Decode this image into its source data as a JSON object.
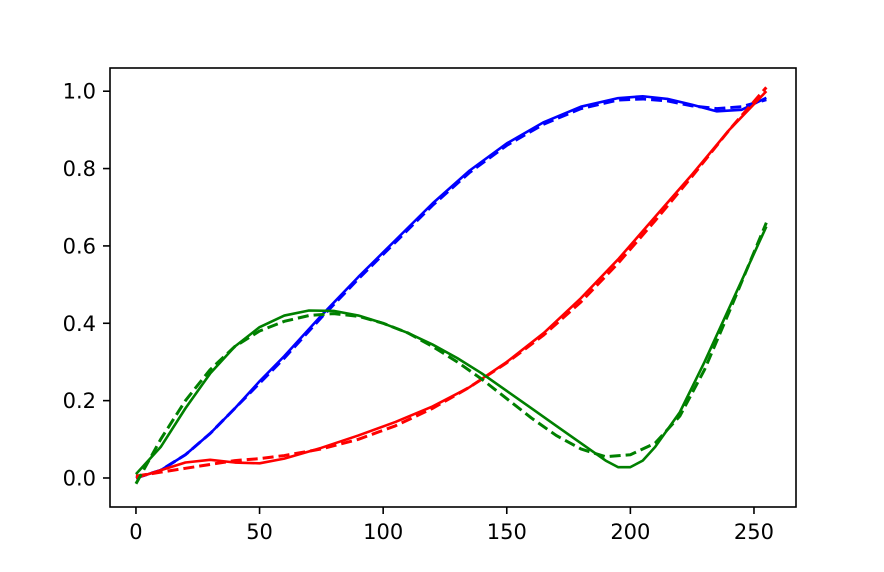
{
  "chart_data": {
    "type": "line",
    "title": "",
    "xlabel": "",
    "ylabel": "",
    "xlim": [
      -10.5,
      267
    ],
    "ylim": [
      -0.075,
      1.06
    ],
    "grid": false,
    "legend": "none",
    "x_ticks": [
      0,
      50,
      100,
      150,
      200,
      250
    ],
    "y_ticks": [
      0.0,
      0.2,
      0.4,
      0.6,
      0.8,
      1.0
    ],
    "x_tick_labels": [
      "0",
      "50",
      "100",
      "150",
      "200",
      "250"
    ],
    "y_tick_labels": [
      "0.0",
      "0.2",
      "0.4",
      "0.6",
      "0.8",
      "1.0"
    ],
    "series": [
      {
        "color": "#0000ff",
        "style": "solid",
        "x": [
          0,
          10,
          20,
          30,
          40,
          50,
          60,
          75,
          90,
          105,
          120,
          135,
          150,
          165,
          180,
          195,
          205,
          215,
          225,
          235,
          245,
          255
        ],
        "y": [
          0.0,
          0.02,
          0.06,
          0.115,
          0.18,
          0.25,
          0.315,
          0.42,
          0.52,
          0.615,
          0.71,
          0.795,
          0.865,
          0.92,
          0.96,
          0.982,
          0.987,
          0.98,
          0.965,
          0.948,
          0.952,
          0.983
        ]
      },
      {
        "color": "#0000ff",
        "style": "dashed",
        "x": [
          0,
          10,
          20,
          30,
          40,
          50,
          60,
          75,
          90,
          105,
          120,
          135,
          150,
          165,
          180,
          195,
          205,
          215,
          225,
          235,
          245,
          255
        ],
        "y": [
          0.0,
          0.02,
          0.06,
          0.115,
          0.18,
          0.245,
          0.31,
          0.415,
          0.515,
          0.61,
          0.705,
          0.79,
          0.86,
          0.915,
          0.955,
          0.977,
          0.98,
          0.975,
          0.962,
          0.955,
          0.96,
          0.978
        ]
      },
      {
        "color": "#ff0000",
        "style": "solid",
        "x": [
          0,
          10,
          20,
          30,
          40,
          50,
          60,
          75,
          90,
          105,
          120,
          135,
          150,
          165,
          180,
          195,
          210,
          225,
          240,
          255
        ],
        "y": [
          0.0,
          0.02,
          0.04,
          0.047,
          0.04,
          0.038,
          0.05,
          0.078,
          0.11,
          0.145,
          0.185,
          0.235,
          0.3,
          0.375,
          0.465,
          0.565,
          0.675,
          0.785,
          0.9,
          1.0
        ]
      },
      {
        "color": "#ff0000",
        "style": "dashed",
        "x": [
          0,
          10,
          20,
          30,
          40,
          50,
          60,
          75,
          90,
          105,
          120,
          135,
          150,
          165,
          180,
          195,
          210,
          225,
          240,
          255
        ],
        "y": [
          0.005,
          0.015,
          0.025,
          0.035,
          0.045,
          0.05,
          0.058,
          0.075,
          0.1,
          0.135,
          0.18,
          0.235,
          0.298,
          0.37,
          0.455,
          0.555,
          0.665,
          0.78,
          0.9,
          1.01
        ]
      },
      {
        "color": "#008000",
        "style": "solid",
        "x": [
          0,
          10,
          20,
          30,
          40,
          50,
          60,
          70,
          80,
          90,
          100,
          110,
          120,
          130,
          140,
          150,
          160,
          170,
          180,
          190,
          195,
          200,
          205,
          210,
          220,
          230,
          240,
          255
        ],
        "y": [
          0.01,
          0.08,
          0.18,
          0.27,
          0.34,
          0.39,
          0.42,
          0.433,
          0.432,
          0.42,
          0.4,
          0.375,
          0.345,
          0.31,
          0.27,
          0.225,
          0.18,
          0.135,
          0.09,
          0.045,
          0.028,
          0.028,
          0.045,
          0.08,
          0.17,
          0.3,
          0.44,
          0.65
        ]
      },
      {
        "color": "#008000",
        "style": "dashed",
        "x": [
          0,
          10,
          20,
          30,
          40,
          50,
          60,
          70,
          80,
          90,
          100,
          110,
          120,
          130,
          140,
          150,
          160,
          170,
          180,
          190,
          200,
          210,
          220,
          230,
          240,
          255
        ],
        "y": [
          -0.015,
          0.1,
          0.2,
          0.28,
          0.34,
          0.38,
          0.405,
          0.42,
          0.425,
          0.418,
          0.4,
          0.375,
          0.34,
          0.3,
          0.255,
          0.205,
          0.155,
          0.11,
          0.075,
          0.055,
          0.06,
          0.09,
          0.16,
          0.28,
          0.43,
          0.66
        ]
      }
    ]
  }
}
